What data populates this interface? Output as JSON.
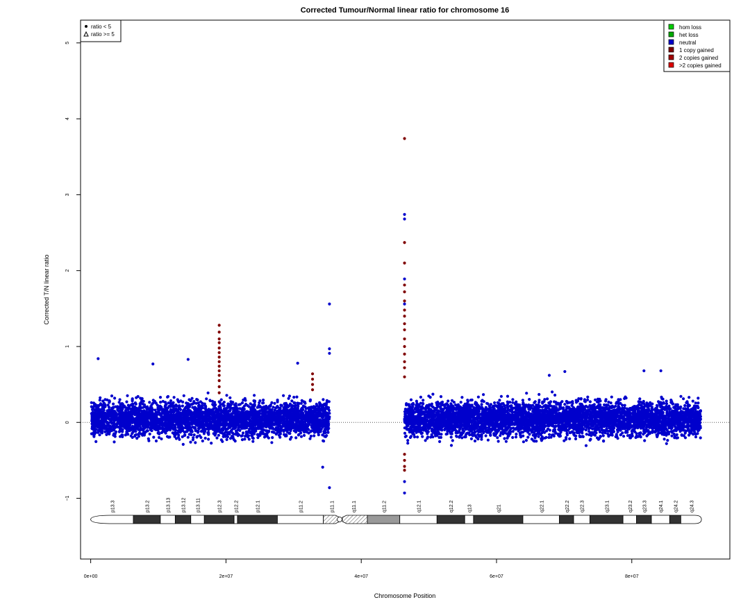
{
  "chart_data": {
    "type": "scatter",
    "title": "Corrected Tumour/Normal linear ratio for chromosome  16",
    "xlabel": "Chromosome Position",
    "ylabel": "Corrected T/N linear ratio",
    "xlim": [
      -1500000,
      94500000
    ],
    "ylim": [
      -1.8,
      5.3
    ],
    "x_ticks": [
      0,
      20000000,
      40000000,
      60000000,
      80000000
    ],
    "x_tick_labels": [
      "0e+00",
      "2e+07",
      "4e+07",
      "6e+07",
      "8e+07"
    ],
    "y_ticks": [
      -1,
      0,
      1,
      2,
      3,
      4,
      5
    ],
    "y_tick_labels": [
      "−1",
      "0",
      "1",
      "2",
      "3",
      "4",
      "5"
    ],
    "reference_line": 0,
    "shape_legend": [
      {
        "symbol": "filled-circle",
        "label": "ratio < 5"
      },
      {
        "symbol": "open-triangle",
        "label": "ratio >= 5"
      }
    ],
    "legend_position": "top-right",
    "shape_legend_position": "top-left",
    "series": [
      {
        "name": "hom loss",
        "color": "#00cc00",
        "points": []
      },
      {
        "name": "het loss",
        "color": "#00aa00",
        "points": []
      },
      {
        "name": "neutral",
        "color": "#0000cc",
        "ranges": [
          [
            100000,
            35300000
          ],
          [
            46400000,
            90200000
          ]
        ],
        "median": 0.05,
        "spread": 0.45,
        "outliers": [
          [
            1100000,
            0.84
          ],
          [
            9200000,
            0.77
          ],
          [
            14400000,
            0.83
          ],
          [
            30600000,
            0.78
          ],
          [
            35300000,
            1.56
          ],
          [
            35300000,
            0.97
          ],
          [
            35300000,
            0.91
          ],
          [
            35300000,
            -0.86
          ],
          [
            46400000,
            -0.93
          ],
          [
            46400000,
            -0.78
          ],
          [
            46400000,
            2.74
          ],
          [
            46400000,
            2.68
          ],
          [
            46400000,
            1.89
          ],
          [
            46400000,
            1.56
          ],
          [
            34300000,
            -0.59
          ],
          [
            67800000,
            0.62
          ],
          [
            70100000,
            0.67
          ],
          [
            81800000,
            0.68
          ],
          [
            84300000,
            0.68
          ]
        ]
      },
      {
        "name": "1 copy gained",
        "color": "#800000",
        "points": [
          [
            19000000,
            1.28
          ],
          [
            19000000,
            1.19
          ],
          [
            19000000,
            1.1
          ],
          [
            19000000,
            1.05
          ],
          [
            19000000,
            0.98
          ],
          [
            19000000,
            0.92
          ],
          [
            19000000,
            0.86
          ],
          [
            19000000,
            0.8
          ],
          [
            19000000,
            0.74
          ],
          [
            19000000,
            0.68
          ],
          [
            19000000,
            0.62
          ],
          [
            19000000,
            0.55
          ],
          [
            19000000,
            0.47
          ],
          [
            19000000,
            0.39
          ],
          [
            32800000,
            0.64
          ],
          [
            32800000,
            0.57
          ],
          [
            32800000,
            0.5
          ],
          [
            32800000,
            0.43
          ],
          [
            46400000,
            3.74
          ],
          [
            46400000,
            2.37
          ],
          [
            46400000,
            2.1
          ],
          [
            46400000,
            1.81
          ],
          [
            46400000,
            1.72
          ],
          [
            46400000,
            1.6
          ],
          [
            46400000,
            1.48
          ],
          [
            46400000,
            1.4
          ],
          [
            46400000,
            1.3
          ],
          [
            46400000,
            1.22
          ],
          [
            46400000,
            1.1
          ],
          [
            46400000,
            1.0
          ],
          [
            46400000,
            0.9
          ],
          [
            46400000,
            0.8
          ],
          [
            46400000,
            0.72
          ],
          [
            46400000,
            0.6
          ],
          [
            46400000,
            -0.42
          ],
          [
            46400000,
            -0.5
          ],
          [
            46400000,
            -0.58
          ],
          [
            46400000,
            -0.63
          ]
        ]
      },
      {
        "name": "2 copies gained",
        "color": "#a00000",
        "points": []
      },
      {
        "name": ">2 copies gained",
        "color": "#dd0000",
        "points": []
      }
    ],
    "ideogram": {
      "length": 90300000,
      "centromere": 36800000,
      "bands": [
        {
          "name": "p13.3",
          "start": 0,
          "end": 6300000,
          "stain": "gneg"
        },
        {
          "name": "p13.2",
          "start": 6300000,
          "end": 10300000,
          "stain": "gpos75"
        },
        {
          "name": "p13.13",
          "start": 10300000,
          "end": 12500000,
          "stain": "gneg"
        },
        {
          "name": "p13.12",
          "start": 12500000,
          "end": 14800000,
          "stain": "gpos75"
        },
        {
          "name": "p13.11",
          "start": 14800000,
          "end": 16800000,
          "stain": "gneg"
        },
        {
          "name": "p12.3",
          "start": 16800000,
          "end": 21200000,
          "stain": "gpos75"
        },
        {
          "name": "p12.2",
          "start": 21200000,
          "end": 21700000,
          "stain": "gneg"
        },
        {
          "name": "p12.1",
          "start": 21700000,
          "end": 27600000,
          "stain": "gpos75"
        },
        {
          "name": "p11.2",
          "start": 27600000,
          "end": 34400000,
          "stain": "gneg"
        },
        {
          "name": "p11.1",
          "start": 34400000,
          "end": 36800000,
          "stain": "acen"
        },
        {
          "name": "q11.1",
          "start": 36800000,
          "end": 40900000,
          "stain": "acen"
        },
        {
          "name": "q11.2",
          "start": 40900000,
          "end": 45700000,
          "stain": "gvar"
        },
        {
          "name": "q12.1",
          "start": 45700000,
          "end": 51200000,
          "stain": "gneg"
        },
        {
          "name": "q12.2",
          "start": 51200000,
          "end": 55300000,
          "stain": "gpos75"
        },
        {
          "name": "q13",
          "start": 55300000,
          "end": 56600000,
          "stain": "gneg"
        },
        {
          "name": "q21",
          "start": 56600000,
          "end": 63900000,
          "stain": "gpos75"
        },
        {
          "name": "q22.1",
          "start": 63900000,
          "end": 69300000,
          "stain": "gneg"
        },
        {
          "name": "q22.2",
          "start": 69300000,
          "end": 71400000,
          "stain": "gpos75"
        },
        {
          "name": "q22.3",
          "start": 71400000,
          "end": 73800000,
          "stain": "gneg"
        },
        {
          "name": "q23.1",
          "start": 73800000,
          "end": 78700000,
          "stain": "gpos75"
        },
        {
          "name": "q23.2",
          "start": 78700000,
          "end": 80700000,
          "stain": "gneg"
        },
        {
          "name": "q23.3",
          "start": 80700000,
          "end": 82900000,
          "stain": "gpos75"
        },
        {
          "name": "q24.1",
          "start": 82900000,
          "end": 85600000,
          "stain": "gneg"
        },
        {
          "name": "q24.2",
          "start": 85600000,
          "end": 87300000,
          "stain": "gpos75"
        },
        {
          "name": "q24.3",
          "start": 87300000,
          "end": 90300000,
          "stain": "gneg"
        }
      ]
    }
  }
}
